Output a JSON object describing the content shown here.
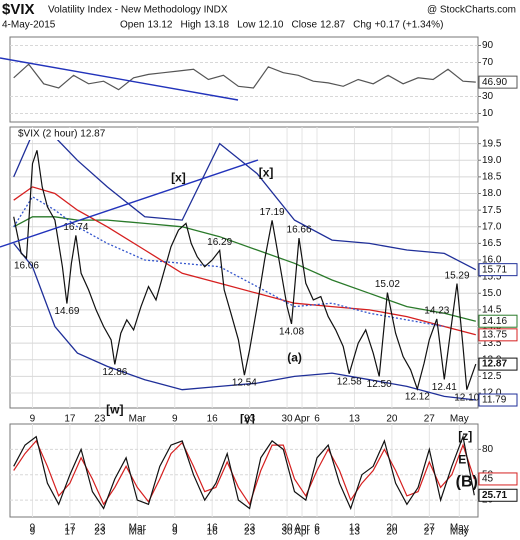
{
  "header": {
    "symbol": "$VIX",
    "name": "Volatility Index - New Methodology INDX",
    "source": "@ StockCharts.com",
    "date": "4-May-2015",
    "stats": [
      {
        "label": "Open",
        "value": "13.12"
      },
      {
        "label": "High",
        "value": "13.18"
      },
      {
        "label": "Low",
        "value": "12.10"
      },
      {
        "label": "Close",
        "value": "12.87"
      },
      {
        "label": "Chg",
        "value": "+0.17 (+1.34%)"
      }
    ]
  },
  "chart_data": [
    {
      "type": "line",
      "xlim": [
        -3,
        59.5
      ],
      "ylim": [
        0,
        100
      ],
      "yticks": [
        10,
        30,
        70,
        90
      ],
      "grid": true,
      "x": [
        -2.5,
        -0.5,
        1.5,
        3.5,
        5.5,
        7.5,
        9.5,
        11.5,
        13.5,
        15.5,
        17.5,
        19.5,
        21.5,
        23.5,
        25.5,
        27.5,
        29.5,
        31.5,
        33.5,
        35.5,
        37.5,
        39.5,
        41.5,
        43.5,
        45.5,
        47.5,
        49.5,
        51.5,
        53.5,
        55.5,
        57.5,
        59.2
      ],
      "series": [
        {
          "color": "#555555",
          "values": [
            52,
            68,
            45,
            40,
            55,
            45,
            48,
            38,
            52,
            56,
            58,
            60,
            62,
            50,
            55,
            42,
            40,
            65,
            58,
            55,
            48,
            46,
            42,
            50,
            45,
            55,
            45,
            52,
            50,
            62,
            48,
            46.9
          ],
          "value_labels": [
            null,
            null,
            null,
            null,
            null,
            null,
            null,
            null,
            null,
            null,
            null,
            null,
            null,
            null,
            null,
            null,
            null,
            null,
            null,
            null,
            null,
            null,
            null,
            null,
            null,
            null,
            null,
            null,
            null,
            null,
            null,
            "46.90"
          ]
        }
      ]
    },
    {
      "type": "line",
      "title": "$VIX (2 hour) 12.87",
      "xlim": [
        -3,
        59.5
      ],
      "ylim": [
        11.55,
        20.0
      ],
      "grid": true,
      "yticks": [
        {
          "value": 12,
          "label": "12.0"
        },
        12.5,
        {
          "value": 13,
          "label": "13.0"
        },
        13.5,
        {
          "value": 14,
          "label": "14.0"
        },
        14.5,
        {
          "value": 15,
          "label": "15.0"
        },
        15.5,
        {
          "value": 16,
          "label": "16.0"
        },
        16.5,
        {
          "value": 17,
          "label": "17.0"
        },
        17.5,
        {
          "value": 18,
          "label": "18.0"
        },
        18.5,
        {
          "value": 19,
          "label": "19.0"
        },
        19.5
      ],
      "xticks": [
        {
          "value": 0,
          "label": "9"
        },
        {
          "value": 5,
          "label": "17"
        },
        {
          "value": 9,
          "label": "23"
        },
        {
          "value": 14,
          "label": "Mar"
        },
        {
          "value": 19,
          "label": "9"
        },
        {
          "value": 24,
          "label": "16"
        },
        {
          "value": 29,
          "label": "23"
        },
        {
          "value": 34,
          "label": "30"
        },
        {
          "value": 36,
          "label": "Apr"
        },
        {
          "value": 38,
          "label": "6"
        },
        {
          "value": 43,
          "label": "13"
        },
        {
          "value": 48,
          "label": "20"
        },
        {
          "value": 53,
          "label": "27"
        },
        {
          "value": 57,
          "label": "May"
        }
      ],
      "x": [
        -2.5,
        -1.5,
        -0.8,
        0,
        0.6,
        1.3,
        2,
        3,
        4,
        4.6,
        5.2,
        5.8,
        6.5,
        7.5,
        8.5,
        9.5,
        10.5,
        11,
        11.8,
        12.6,
        13.5,
        14.5,
        15.5,
        16.5,
        17.5,
        18.5,
        19.5,
        20.5,
        21.2,
        22,
        23,
        24,
        25,
        25.6,
        26.5,
        27.5,
        28.3,
        29,
        30,
        31,
        32,
        33,
        34,
        34.6,
        35.6,
        36.5,
        37.5,
        38.5,
        39.5,
        40.5,
        41.5,
        42.3,
        43.5,
        44.5,
        45.5,
        46.3,
        47.4,
        48.5,
        49.5,
        50.5,
        51.4,
        52.3,
        53,
        54,
        55,
        55.8,
        56.7,
        57.5,
        58,
        59.2
      ],
      "series": [
        {
          "color": "#111111",
          "values": [
            17.3,
            16.2,
            16.06,
            18.9,
            19.3,
            18.2,
            17.6,
            17.2,
            15.8,
            14.69,
            15.9,
            16.74,
            15.6,
            15.1,
            14.5,
            14.0,
            13.6,
            12.86,
            13.8,
            14.2,
            13.9,
            14.6,
            15.2,
            14.8,
            15.6,
            16.4,
            16.9,
            17.1,
            16.5,
            16.1,
            15.8,
            16.0,
            16.29,
            15.1,
            14.4,
            13.6,
            12.54,
            13.3,
            14.6,
            16.0,
            17.19,
            15.9,
            14.6,
            14.08,
            16.66,
            15.3,
            14.8,
            14.9,
            14.3,
            13.9,
            13.4,
            12.58,
            13.5,
            13.9,
            13.2,
            12.5,
            15.02,
            13.8,
            13.1,
            12.7,
            12.12,
            12.9,
            13.6,
            14.23,
            12.41,
            13.8,
            15.29,
            13.4,
            12.1,
            12.87
          ],
          "value_labels": [
            null,
            null,
            "16.06",
            null,
            null,
            null,
            null,
            null,
            null,
            "14.69",
            null,
            "16.74",
            null,
            null,
            null,
            null,
            null,
            "12.86",
            null,
            null,
            null,
            null,
            null,
            null,
            null,
            null,
            null,
            null,
            null,
            null,
            null,
            null,
            "16.29",
            null,
            null,
            null,
            "12.54",
            null,
            null,
            null,
            "17.19",
            null,
            null,
            "14.08",
            "16.66",
            null,
            null,
            null,
            null,
            null,
            null,
            "12.58",
            null,
            null,
            null,
            "12.50",
            "15.02",
            null,
            null,
            null,
            "12.12",
            null,
            null,
            "14.23",
            "12.41",
            null,
            "15.29",
            null,
            "12.10",
            null
          ]
        }
      ],
      "overlays": [
        {
          "color": "#1f2f99",
          "x": [
            -2.5,
            0,
            3,
            6,
            10,
            15,
            20,
            25,
            30,
            35,
            40,
            45,
            50,
            55,
            59.2
          ],
          "values": [
            18.5,
            19.8,
            19.7,
            19.0,
            18.2,
            17.3,
            17.2,
            19.5,
            18.6,
            17.2,
            16.6,
            16.5,
            16.3,
            16.2,
            15.71
          ]
        },
        {
          "color": "#2a7a2a",
          "x": [
            -2.5,
            0,
            3,
            6,
            10,
            15,
            20,
            25,
            30,
            35,
            40,
            45,
            50,
            55,
            59.2
          ],
          "values": [
            17.0,
            17.3,
            17.3,
            17.2,
            17.2,
            17.1,
            17.0,
            16.7,
            16.3,
            15.9,
            15.4,
            15.0,
            14.6,
            14.4,
            14.16
          ]
        },
        {
          "color": "#d62020",
          "x": [
            -2.5,
            0,
            3,
            6,
            10,
            15,
            20,
            25,
            30,
            35,
            40,
            45,
            50,
            55,
            59.2
          ],
          "values": [
            17.8,
            18.2,
            18.0,
            17.5,
            17.0,
            16.3,
            15.6,
            15.3,
            15.0,
            14.7,
            14.6,
            14.5,
            14.3,
            14.0,
            13.75
          ]
        },
        {
          "color": "#3355cc",
          "dash": true,
          "x": [
            -2.5,
            0,
            3,
            6,
            10,
            15,
            20,
            25,
            30,
            35,
            40,
            45,
            50,
            55
          ],
          "values": [
            17.0,
            17.9,
            17.5,
            17.0,
            16.5,
            16.0,
            15.9,
            15.8,
            15.2,
            14.6,
            14.7,
            14.4,
            14.2,
            14.0
          ]
        },
        {
          "color": "#1f2f99",
          "x": [
            -2.5,
            0,
            3,
            6,
            10,
            15,
            20,
            25,
            30,
            35,
            40,
            45,
            50,
            55,
            59.2
          ],
          "values": [
            16.5,
            15.8,
            14.0,
            13.2,
            12.8,
            12.4,
            12.1,
            12.2,
            12.3,
            12.5,
            12.6,
            12.4,
            12.2,
            11.9,
            11.79
          ]
        }
      ],
      "annotations": [
        {
          "text": "[x]",
          "x": 19.5,
          "y": 18.45,
          "color": "#d00000"
        },
        {
          "text": "[x]",
          "x": 31.2,
          "y": 18.6,
          "color": "#d00000"
        },
        {
          "text": "(a)",
          "x": 35,
          "y": 13.05,
          "color": "#2a8a2a"
        },
        {
          "text": "[w]",
          "x": 11,
          "y": 11.48,
          "color": "#d00000"
        },
        {
          "text": "[y]",
          "x": 28.7,
          "y": 11.2,
          "color": "#d00000"
        }
      ]
    },
    {
      "type": "line",
      "xlim": [
        -3,
        59.5
      ],
      "ylim": [
        0,
        110
      ],
      "yticks": [
        20,
        50,
        80
      ],
      "grid": true,
      "xticks": [
        {
          "value": 0,
          "label": "9"
        },
        {
          "value": 5,
          "label": "17"
        },
        {
          "value": 9,
          "label": "23"
        },
        {
          "value": 14,
          "label": "Mar"
        },
        {
          "value": 19,
          "label": "9"
        },
        {
          "value": 24,
          "label": "16"
        },
        {
          "value": 29,
          "label": "23"
        },
        {
          "value": 34,
          "label": "30"
        },
        {
          "value": 36,
          "label": "Apr"
        },
        {
          "value": 38,
          "label": "6"
        },
        {
          "value": 43,
          "label": "13"
        },
        {
          "value": 48,
          "label": "20"
        },
        {
          "value": 53,
          "label": "27"
        },
        {
          "value": 57,
          "label": "May"
        }
      ],
      "x": [
        -2.5,
        -1,
        0.5,
        2,
        3.5,
        5,
        6.5,
        8,
        9.5,
        11,
        12.5,
        14,
        15.5,
        17,
        18.5,
        20,
        21.5,
        23,
        24.5,
        26,
        27.5,
        29,
        30.5,
        32,
        33.5,
        35,
        36.5,
        38,
        39.5,
        41,
        42.5,
        44,
        45.5,
        47,
        48.5,
        50,
        51.5,
        53,
        54.5,
        56,
        57.5,
        59
      ],
      "series": [
        {
          "color": "#d62020",
          "values": [
            55,
            75,
            90,
            60,
            25,
            40,
            70,
            45,
            15,
            35,
            60,
            35,
            18,
            45,
            75,
            88,
            60,
            30,
            35,
            65,
            35,
            15,
            55,
            85,
            85,
            45,
            25,
            55,
            80,
            55,
            20,
            40,
            55,
            80,
            55,
            25,
            30,
            65,
            35,
            50,
            85,
            45
          ]
        },
        {
          "color": "#111111",
          "values": [
            60,
            85,
            95,
            40,
            15,
            50,
            80,
            30,
            10,
            45,
            70,
            20,
            15,
            60,
            85,
            90,
            50,
            20,
            40,
            75,
            20,
            10,
            70,
            90,
            80,
            30,
            20,
            70,
            85,
            40,
            10,
            50,
            60,
            90,
            40,
            15,
            35,
            80,
            20,
            60,
            95,
            25.71
          ]
        }
      ],
      "annotations": [
        {
          "text": "[z]",
          "x": 57.8,
          "y": 95,
          "color": "#d00000"
        },
        {
          "text": "E",
          "x": 57.4,
          "y": 67,
          "color": "#8a2ab8"
        },
        {
          "text": "(B)",
          "x": 58,
          "y": 41,
          "color": "#111111",
          "big": true
        }
      ]
    }
  ]
}
